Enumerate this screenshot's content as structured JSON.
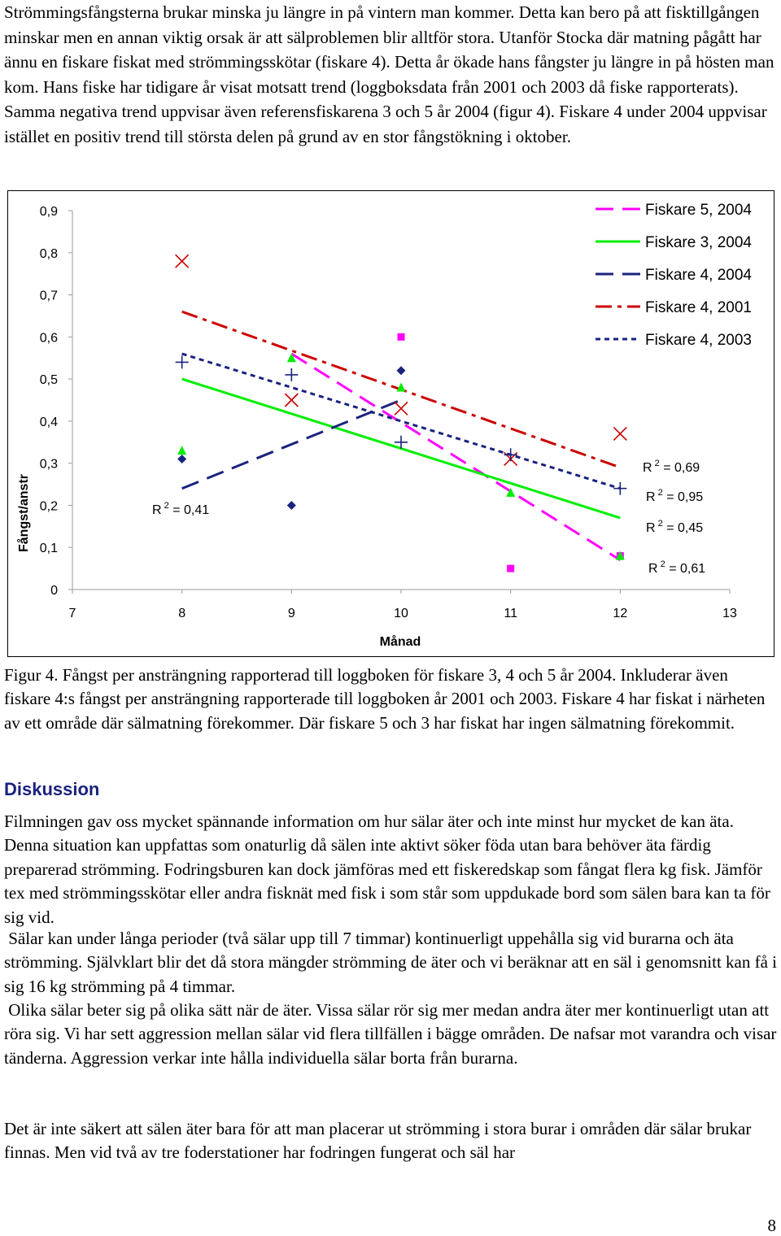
{
  "intro_text": "Strömmingsfångsterna brukar minska ju längre in på vintern man kommer. Detta kan bero på att fisktillgången minskar men en annan viktig orsak är att sälproblemen blir alltför stora. Utanför Stocka där matning pågått har ännu en fiskare fiskat med strömmingsskötar (fiskare 4). Detta år ökade hans fångster ju längre in på hösten man kom. Hans fiske har tidigare år visat motsatt trend (loggboksdata från 2001 och 2003 då fiske rapporterats). Samma negativa trend uppvisar även referensfiskarena 3 och 5 år 2004 (figur 4). Fiskare 4 under 2004 uppvisar istället en positiv trend till största delen på grund av en stor fångstökning i oktober.",
  "chart_data": {
    "type": "scatter",
    "xlabel": "Månad",
    "ylabel": "Fångst/anstr",
    "xlim": [
      7,
      13
    ],
    "ylim": [
      0,
      0.9
    ],
    "x_ticks": [
      "7",
      "8",
      "9",
      "10",
      "11",
      "12",
      "13"
    ],
    "y_ticks": [
      "0",
      "0,1",
      "0,2",
      "0,3",
      "0,4",
      "0,5",
      "0,6",
      "0,7",
      "0,8",
      "0,9"
    ],
    "gridlines": false,
    "legend_position": "top-right",
    "series": [
      {
        "name": "Fiskare 5, 2004",
        "color": "#ff00ff",
        "marker": "square",
        "line_style": "long-dash",
        "points": [
          [
            10,
            0.6
          ],
          [
            11,
            0.05
          ],
          [
            12,
            0.08
          ]
        ],
        "trend": [
          [
            9,
            0.56
          ],
          [
            12,
            0.07
          ]
        ],
        "r2_label": "R 2 = 0,95"
      },
      {
        "name": "Fiskare 3, 2004",
        "color": "#00ee00",
        "marker": "triangle",
        "line_style": "solid",
        "points": [
          [
            8,
            0.33
          ],
          [
            9,
            0.55
          ],
          [
            10,
            0.48
          ],
          [
            11,
            0.23
          ],
          [
            12,
            0.08
          ]
        ],
        "trend": [
          [
            8,
            0.5
          ],
          [
            12,
            0.17
          ]
        ],
        "r2_label": "R 2 = 0,45"
      },
      {
        "name": "Fiskare 4, 2004",
        "color": "#1a237e",
        "marker": "diamond",
        "line_style": "long-dash",
        "points": [
          [
            8,
            0.31
          ],
          [
            9,
            0.2
          ],
          [
            10,
            0.52
          ]
        ],
        "trend": [
          [
            8,
            0.24
          ],
          [
            10,
            0.45
          ]
        ],
        "r2_label": "R 2 = 0,41"
      },
      {
        "name": "Fiskare 4, 2001",
        "color": "#cc0000",
        "marker": "x",
        "line_style": "dash-dot",
        "points": [
          [
            8,
            0.78
          ],
          [
            9,
            0.45
          ],
          [
            10,
            0.43
          ],
          [
            11,
            0.31
          ],
          [
            12,
            0.37
          ]
        ],
        "trend": [
          [
            8,
            0.66
          ],
          [
            12,
            0.29
          ]
        ],
        "r2_label": "R 2 = 0,69"
      },
      {
        "name": "Fiskare 4, 2003",
        "color": "#1a237e",
        "marker": "plus",
        "line_style": "short-dash",
        "points": [
          [
            8,
            0.54
          ],
          [
            9,
            0.51
          ],
          [
            10,
            0.35
          ],
          [
            11,
            0.32
          ],
          [
            12,
            0.24
          ]
        ],
        "trend": [
          [
            8,
            0.56
          ],
          [
            12,
            0.24
          ]
        ],
        "r2_label": "R 2 = 0,61"
      }
    ]
  },
  "figure_caption": "Figur 4. Fångst per ansträngning rapporterad till loggboken för fiskare 3, 4 och 5 år 2004. Inkluderar även fiskare 4:s fångst per ansträngning rapporterade till loggboken år 2001 och 2003. Fiskare 4 har fiskat i närheten av ett område där sälmatning förekommer. Där fiskare 5 och 3 har fiskat har ingen sälmatning förekommit.",
  "section_heading": "Diskussion",
  "discussion": {
    "p1": "Filmningen gav oss mycket spännande information om hur sälar äter och inte minst hur mycket de kan äta. Denna situation kan uppfattas som onaturlig då sälen inte aktivt söker föda utan bara behöver äta färdig preparerad strömming. Fodringsburen kan dock jämföras med ett fiskeredskap som fångat flera kg fisk. Jämför tex med strömmingsskötar eller andra fisknät med fisk i som står som uppdukade bord som sälen bara kan ta för sig vid.",
    "p2": "Sälar kan under långa perioder (två sälar upp till 7 timmar) kontinuerligt uppehålla sig vid burarna och äta strömming. Självklart blir det då stora mängder strömming de äter och vi beräknar att en säl i genomsnitt kan få i sig 16 kg strömming på 4 timmar.",
    "p3": "Olika sälar beter sig på olika sätt när de äter. Vissa sälar rör sig mer medan andra äter mer kontinuerligt utan att röra sig. Vi har sett aggression mellan sälar vid flera tillfällen i bägge områden. De nafsar mot varandra och visar tänderna. Aggression verkar inte hålla individuella sälar borta från burarna.",
    "p4": "Det är inte säkert att sälen äter bara för att man placerar ut strömming i stora burar i områden där sälar brukar finnas. Men vid två av tre foderstationer har fodringen fungerat och säl har"
  },
  "page_number": "8"
}
